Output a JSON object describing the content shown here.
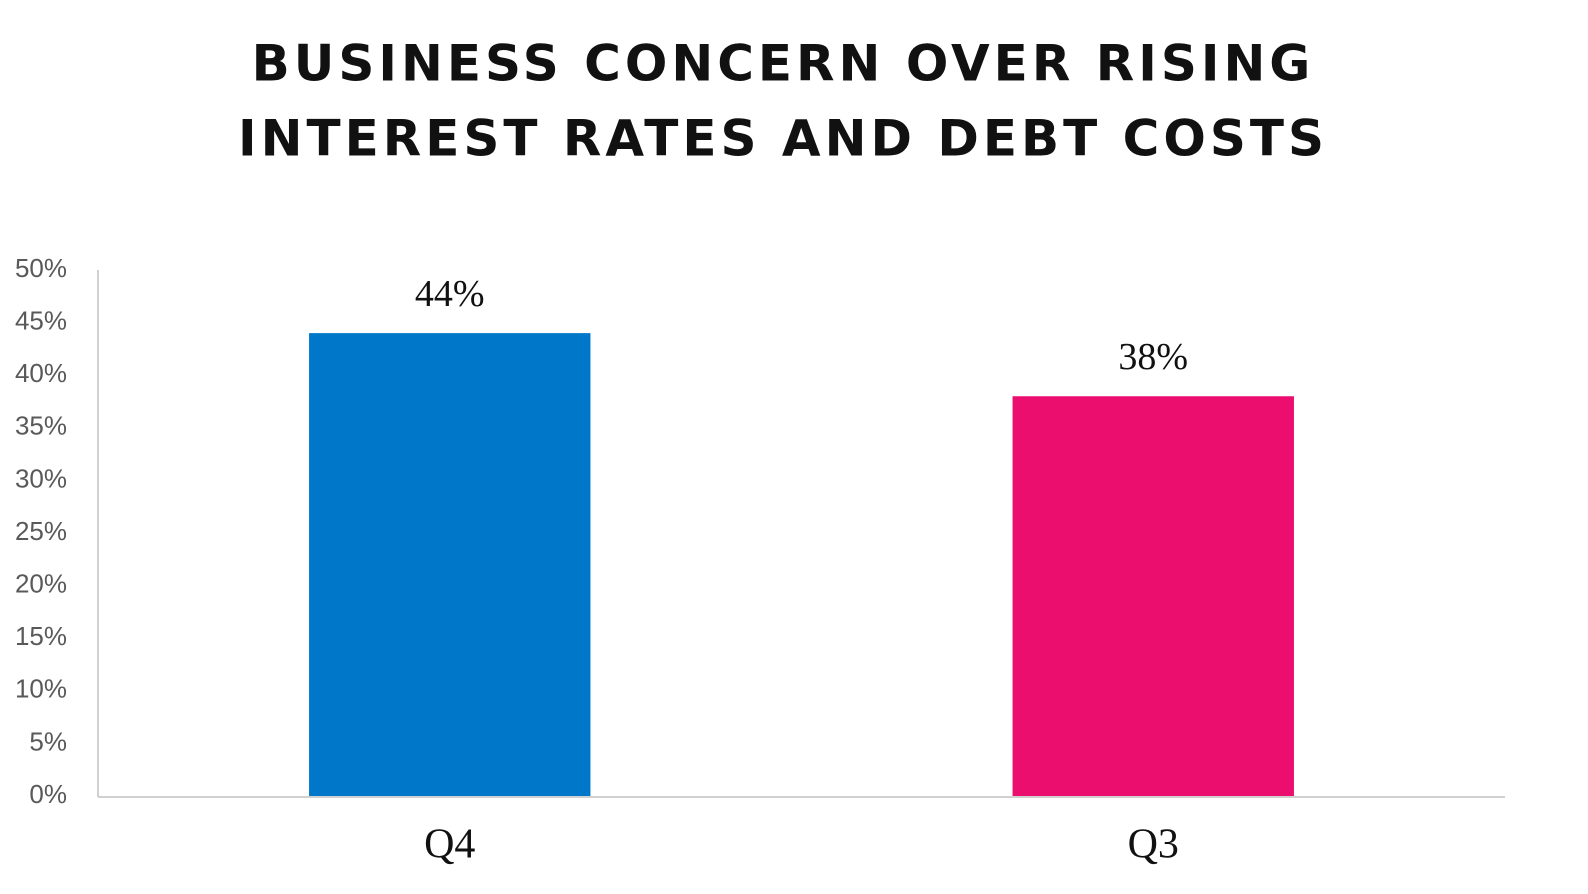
{
  "chart_data": {
    "type": "bar",
    "title": [
      "BUSINESS CONCERN OVER RISING",
      "INTEREST RATES AND DEBT COSTS"
    ],
    "categories": [
      "Q4",
      "Q3"
    ],
    "values": [
      44,
      38
    ],
    "value_labels": [
      "44%",
      "38%"
    ],
    "colors": [
      "#0077c8",
      "#ec0e6e"
    ],
    "ylim": [
      0,
      50
    ],
    "yticks": [
      {
        "value": 0,
        "label": "0%"
      },
      {
        "value": 5,
        "label": "5%"
      },
      {
        "value": 10,
        "label": "10%"
      },
      {
        "value": 15,
        "label": "15%"
      },
      {
        "value": 20,
        "label": "20%"
      },
      {
        "value": 25,
        "label": "25%"
      },
      {
        "value": 30,
        "label": "30%"
      },
      {
        "value": 35,
        "label": "35%"
      },
      {
        "value": 40,
        "label": "40%"
      },
      {
        "value": 45,
        "label": "45%"
      },
      {
        "value": 50,
        "label": "50%"
      }
    ],
    "grid": false
  }
}
